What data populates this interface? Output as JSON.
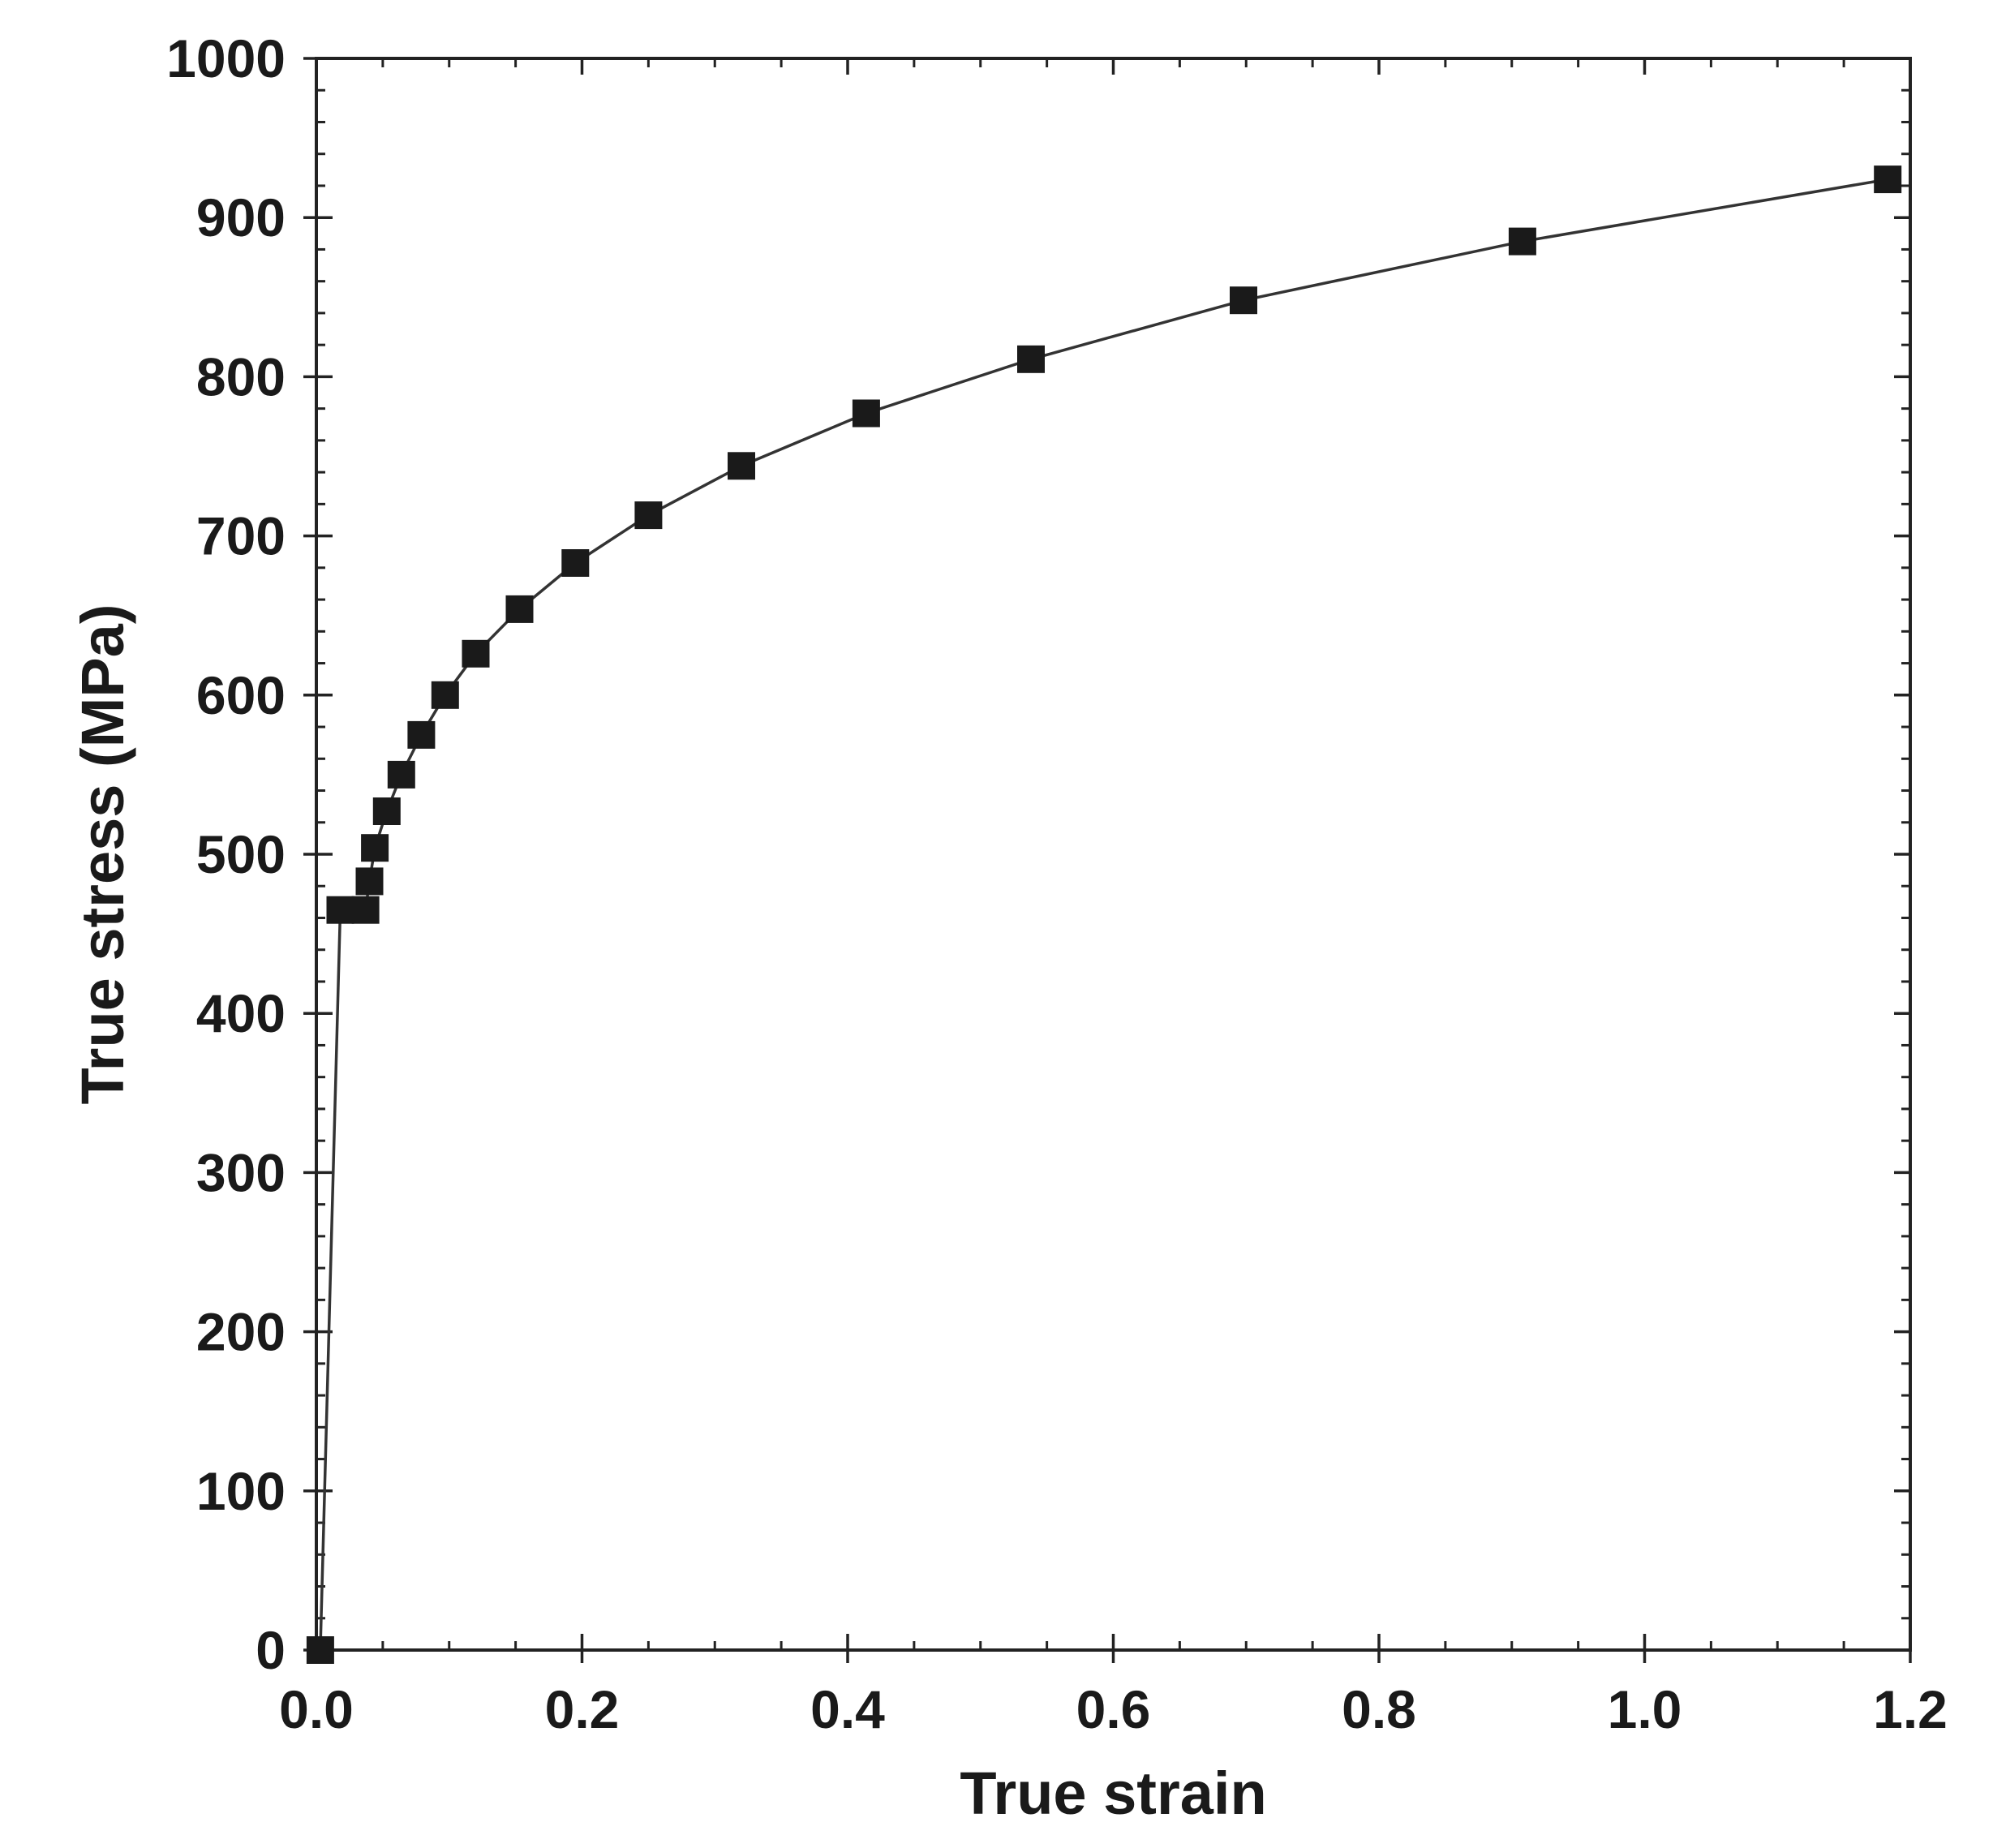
{
  "chart_data": {
    "type": "scatter",
    "title": "",
    "xlabel": "True strain",
    "ylabel": "True stress (MPa)",
    "xlim": [
      0.0,
      1.2
    ],
    "ylim": [
      0,
      1000
    ],
    "x_ticks": [
      "0.0",
      "0.2",
      "0.4",
      "0.6",
      "0.8",
      "1.0",
      "1.2"
    ],
    "y_ticks": [
      "0",
      "100",
      "200",
      "300",
      "400",
      "500",
      "600",
      "700",
      "800",
      "900",
      "1000"
    ],
    "x_tick_values": [
      0.0,
      0.2,
      0.4,
      0.6,
      0.8,
      1.0,
      1.2
    ],
    "y_tick_values": [
      0,
      100,
      200,
      300,
      400,
      500,
      600,
      700,
      800,
      900,
      1000
    ],
    "x_minor_step": 0.05,
    "y_minor_step": 20,
    "grid": false,
    "legend": "none",
    "marker": "filled-square",
    "line": "connected",
    "colors": {
      "marker": "#1a1a1a",
      "line": "#333333",
      "axis": "#222222"
    },
    "series": [
      {
        "x": [
          0.003,
          0.018,
          0.037,
          0.04,
          0.044,
          0.053,
          0.064,
          0.079,
          0.097,
          0.12,
          0.153,
          0.195,
          0.25,
          0.32,
          0.414,
          0.538,
          0.698,
          0.908,
          1.183
        ],
        "y": [
          0,
          465,
          465,
          483,
          504,
          527,
          550,
          575,
          600,
          626,
          654,
          683,
          713,
          744,
          777,
          811,
          848,
          885,
          924
        ]
      }
    ]
  }
}
